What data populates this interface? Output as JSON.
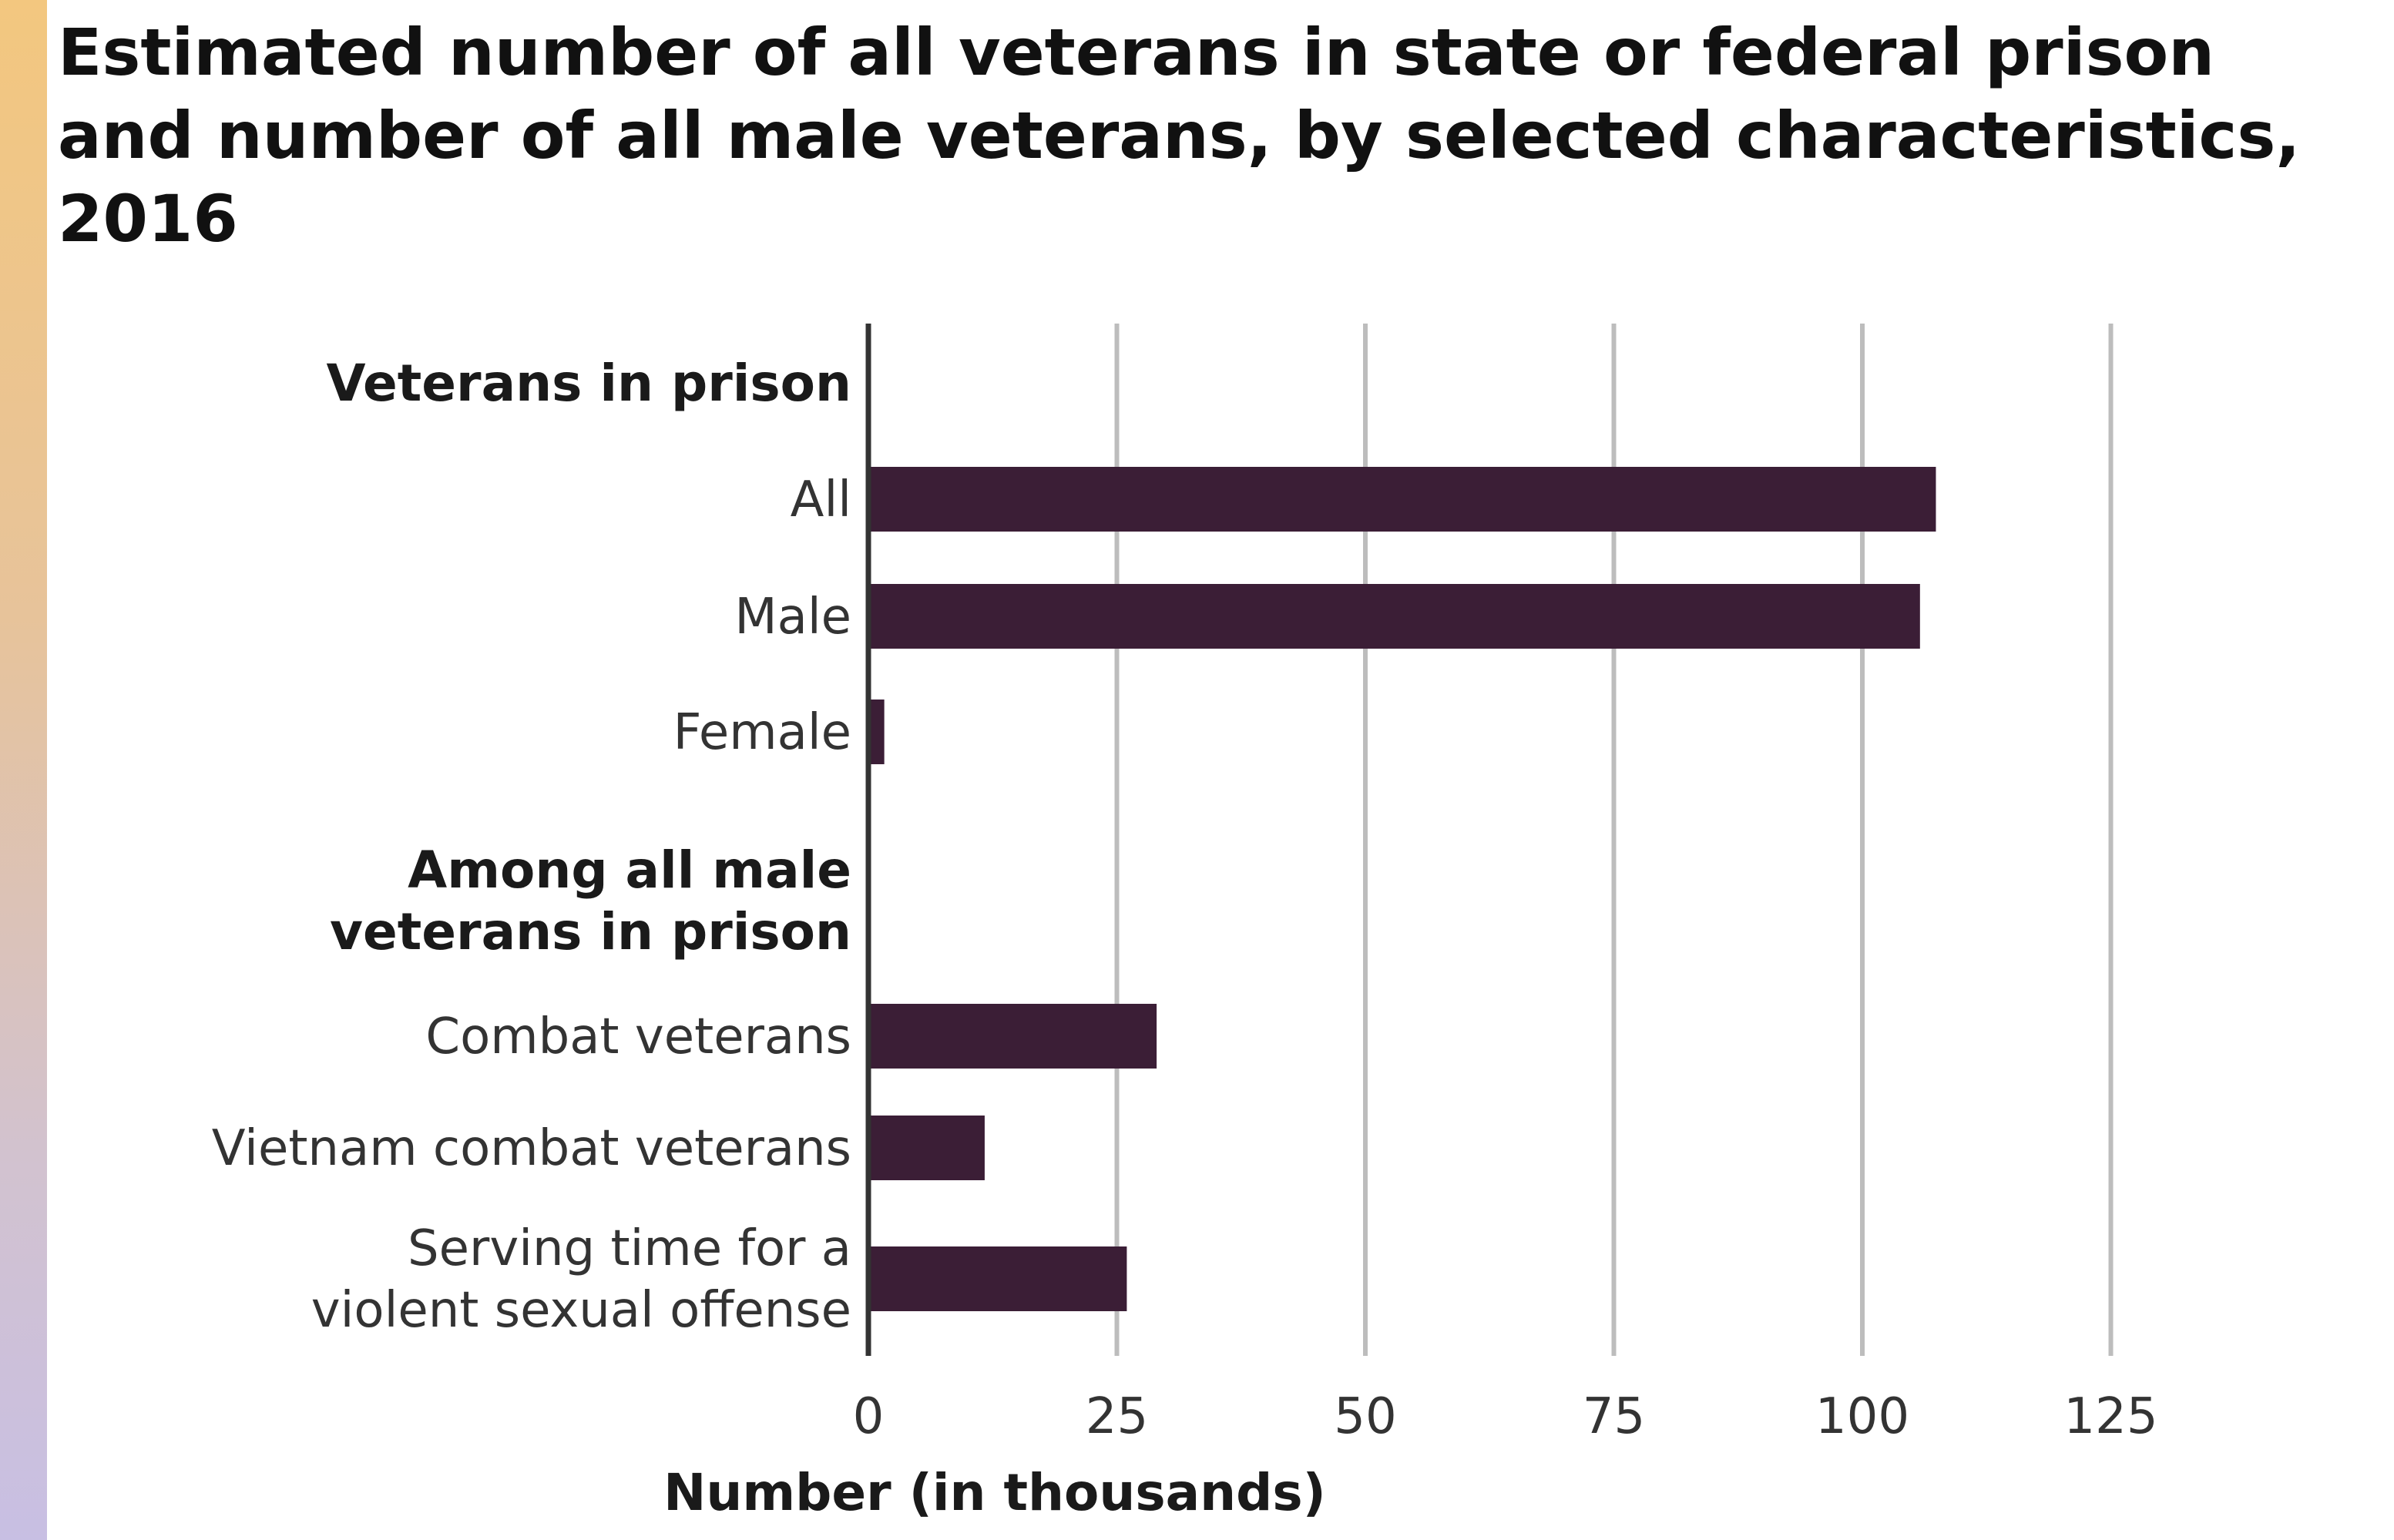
{
  "chart_data": {
    "type": "bar",
    "orientation": "horizontal",
    "title": "Estimated number of all veterans in state or federal prison and number of all male veterans, by selected characteristics, 2016",
    "xlabel": "Number (in thousands)",
    "ylabel": "",
    "xlim": [
      0,
      125
    ],
    "xticks": [
      0,
      25,
      50,
      75,
      100,
      125
    ],
    "grid": true,
    "bar_color": "#3b1e36",
    "grid_color": "#bdbdbd",
    "groups": [
      {
        "label": "Veterans in prison",
        "categories": [
          "All",
          "Male",
          "Female"
        ],
        "values": [
          107.4,
          105.8,
          1.6
        ]
      },
      {
        "label": "Among all male veterans in prison",
        "label_lines": [
          "Among all male",
          "veterans in prison"
        ],
        "categories": [
          "Combat veterans",
          "Vietnam combat veterans",
          "Serving time for a violent sexual offense"
        ],
        "category_lines": [
          [
            "Combat veterans"
          ],
          [
            "Vietnam combat veterans"
          ],
          [
            "Serving time for a",
            "violent sexual offense"
          ]
        ],
        "values": [
          29.0,
          11.7,
          26.0
        ]
      }
    ]
  }
}
